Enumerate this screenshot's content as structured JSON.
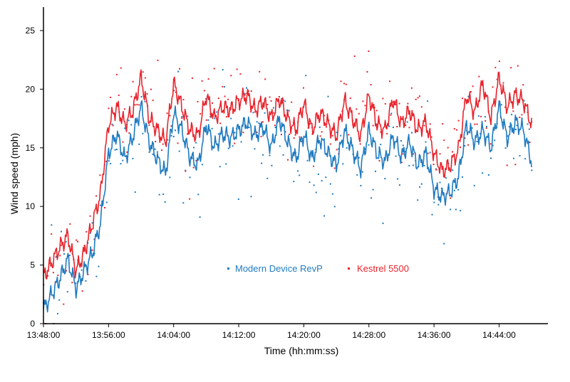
{
  "chart_data": {
    "type": "line",
    "title": "",
    "xlabel": "Time (hh:mm:ss)",
    "ylabel": "Wind speed (mph)",
    "xlim": [
      "13:48:00",
      "14:50:00"
    ],
    "ylim": [
      0,
      27
    ],
    "x_ticks": [
      "13:48:00",
      "13:56:00",
      "14:04:00",
      "14:12:00",
      "14:20:00",
      "14:28:00",
      "14:36:00",
      "14:44:00"
    ],
    "y_ticks": [
      0,
      5,
      10,
      15,
      20,
      25
    ],
    "grid": false,
    "legend_position": "center-left",
    "series": [
      {
        "name": "Modern Device RevP",
        "color": "#1F7BC1",
        "x": [
          "13:48:00",
          "13:49:00",
          "13:50:00",
          "13:51:00",
          "13:52:00",
          "13:53:00",
          "13:54:00",
          "13:55:00",
          "13:56:00",
          "13:57:00",
          "13:58:00",
          "13:59:00",
          "14:00:00",
          "14:01:00",
          "14:02:00",
          "14:03:00",
          "14:04:00",
          "14:05:00",
          "14:06:00",
          "14:07:00",
          "14:08:00",
          "14:09:00",
          "14:10:00",
          "14:11:00",
          "14:12:00",
          "14:13:00",
          "14:14:00",
          "14:15:00",
          "14:16:00",
          "14:17:00",
          "14:18:00",
          "14:19:00",
          "14:20:00",
          "14:21:00",
          "14:22:00",
          "14:23:00",
          "14:24:00",
          "14:25:00",
          "14:26:00",
          "14:27:00",
          "14:28:00",
          "14:29:00",
          "14:30:00",
          "14:31:00",
          "14:32:00",
          "14:33:00",
          "14:34:00",
          "14:35:00",
          "14:36:00",
          "14:37:00",
          "14:38:00",
          "14:39:00",
          "14:40:00",
          "14:41:00",
          "14:42:00",
          "14:43:00",
          "14:44:00",
          "14:45:00",
          "14:46:00",
          "14:47:00",
          "14:48:00"
        ],
        "values": [
          1.2,
          2.5,
          3.8,
          5.5,
          3.0,
          4.5,
          6.0,
          8.5,
          14.5,
          16.2,
          14.0,
          16.0,
          18.5,
          15.5,
          14.0,
          12.8,
          18.0,
          16.5,
          14.2,
          13.5,
          17.0,
          15.0,
          16.2,
          15.8,
          16.5,
          17.2,
          16.0,
          16.8,
          15.0,
          17.5,
          15.5,
          14.0,
          16.2,
          14.0,
          15.8,
          14.5,
          13.5,
          16.5,
          14.8,
          13.2,
          16.5,
          14.5,
          13.8,
          16.0,
          14.2,
          15.5,
          13.5,
          14.5,
          11.5,
          10.8,
          11.2,
          12.5,
          17.0,
          15.5,
          16.5,
          15.0,
          18.5,
          15.8,
          17.2,
          16.5,
          13.8
        ]
      },
      {
        "name": "Kestrel 5500",
        "color": "#E8242C",
        "x": [
          "13:48:00",
          "13:49:00",
          "13:50:00",
          "13:51:00",
          "13:52:00",
          "13:53:00",
          "13:54:00",
          "13:55:00",
          "13:56:00",
          "13:57:00",
          "13:58:00",
          "13:59:00",
          "14:00:00",
          "14:01:00",
          "14:02:00",
          "14:03:00",
          "14:04:00",
          "14:05:00",
          "14:06:00",
          "14:07:00",
          "14:08:00",
          "14:09:00",
          "14:10:00",
          "14:11:00",
          "14:12:00",
          "14:13:00",
          "14:14:00",
          "14:15:00",
          "14:16:00",
          "14:17:00",
          "14:18:00",
          "14:19:00",
          "14:20:00",
          "14:21:00",
          "14:22:00",
          "14:23:00",
          "14:24:00",
          "14:25:00",
          "14:26:00",
          "14:27:00",
          "14:28:00",
          "14:29:00",
          "14:30:00",
          "14:31:00",
          "14:32:00",
          "14:33:00",
          "14:34:00",
          "14:35:00",
          "14:36:00",
          "14:37:00",
          "14:38:00",
          "14:39:00",
          "14:40:00",
          "14:41:00",
          "14:42:00",
          "14:43:00",
          "14:44:00",
          "14:45:00",
          "14:46:00",
          "14:47:00",
          "14:48:00"
        ],
        "values": [
          4.0,
          5.2,
          6.5,
          7.5,
          4.5,
          6.0,
          8.5,
          11.0,
          17.0,
          18.5,
          17.0,
          18.2,
          21.0,
          17.5,
          16.5,
          15.5,
          20.5,
          18.5,
          16.5,
          16.0,
          19.5,
          17.5,
          18.5,
          18.2,
          19.0,
          19.5,
          18.2,
          19.0,
          17.5,
          19.2,
          17.5,
          16.5,
          18.8,
          16.5,
          18.0,
          17.0,
          16.0,
          19.0,
          17.5,
          16.0,
          19.5,
          17.0,
          16.5,
          19.2,
          17.0,
          18.2,
          16.5,
          17.2,
          14.5,
          13.0,
          13.5,
          14.8,
          19.5,
          18.0,
          20.5,
          17.5,
          21.0,
          18.5,
          19.5,
          19.0,
          17.0
        ]
      }
    ]
  }
}
